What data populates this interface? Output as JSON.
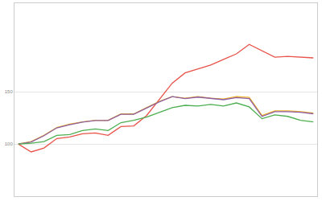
{
  "chart_data": {
    "type": "line",
    "categories": [
      null,
      null,
      null,
      null,
      null,
      null,
      null,
      null,
      null,
      null,
      null,
      null,
      null,
      null,
      null,
      null,
      null,
      null,
      null,
      null,
      null,
      null,
      null,
      null
    ],
    "series": [
      {
        "color": "#e8534a",
        "values": [
          100,
          92.4,
          96.2,
          105.3,
          106.8,
          109.9,
          110.6,
          108.3,
          116.7,
          117.4,
          127.3,
          142.4,
          158.4,
          168.2,
          172,
          175.8,
          181.1,
          186.4,
          195.5,
          189.4,
          183.3,
          184.1,
          183.3,
          182.6
        ]
      },
      {
        "color": "#f0b323",
        "values": [
          100,
          102.3,
          108.3,
          115.9,
          119,
          121.2,
          122.7,
          122.7,
          128.8,
          128.8,
          134.9,
          140.9,
          145.5,
          144,
          145.5,
          144,
          143.2,
          145.5,
          144.7,
          127.3,
          131.8,
          131.8,
          131.1,
          129.6
        ]
      },
      {
        "color": "#8e5ea2",
        "values": [
          100,
          102,
          108,
          115.5,
          118.5,
          121,
          122.5,
          122.5,
          128.5,
          128.5,
          134.5,
          140.5,
          145.5,
          143.5,
          145,
          143.5,
          142.5,
          144.5,
          143.5,
          126.5,
          131,
          131,
          130.5,
          129
        ]
      },
      {
        "color": "#4caf50",
        "values": [
          100,
          100.8,
          102.3,
          108.3,
          109.1,
          112.9,
          114.4,
          112.9,
          120.5,
          122.7,
          125.8,
          130.3,
          134.9,
          137.1,
          136.4,
          137.9,
          136.4,
          139.4,
          135.6,
          124.3,
          128,
          126.5,
          122.7,
          121.2
        ]
      }
    ],
    "ylim": [
      50,
      235
    ],
    "yticks": [
      100,
      150
    ],
    "grid": true
  }
}
